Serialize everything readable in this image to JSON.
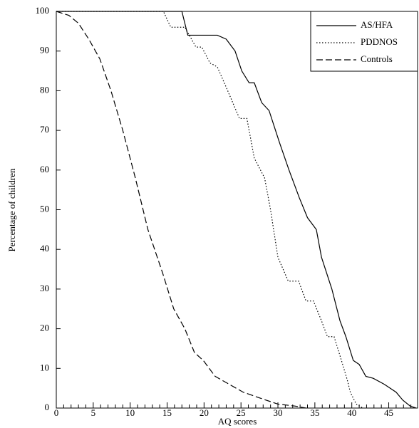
{
  "chart_data": {
    "type": "line",
    "x_label": "AQ scores",
    "y_label": "Percentage of children",
    "xlim": [
      0,
      49
    ],
    "ylim": [
      0,
      100
    ],
    "xticks": [
      0,
      5,
      10,
      15,
      20,
      25,
      30,
      35,
      40,
      45
    ],
    "xminor_ticks": [
      1,
      2,
      3,
      4,
      6,
      7,
      8,
      9,
      11,
      12,
      13,
      14,
      16,
      17,
      18,
      19,
      21,
      22,
      23,
      24,
      26,
      27,
      28,
      29,
      31,
      32,
      33,
      34,
      36,
      37,
      38,
      39,
      41,
      42,
      43,
      44,
      46,
      47,
      48
    ],
    "yticks": [
      0,
      10,
      20,
      30,
      40,
      50,
      60,
      70,
      80,
      90,
      100
    ],
    "legend": "top-right",
    "series": [
      {
        "name": "AS/HFA",
        "color": "#000000",
        "dash": "solid",
        "x": [
          0,
          17.0,
          17.8,
          21.8,
          23,
          24.2,
          25.1,
          26.1,
          26.8,
          27.8,
          28.8,
          30.2,
          31.5,
          32.9,
          34,
          35.2,
          35.9,
          37.3,
          38.4,
          39.2,
          40.2,
          41,
          41.9,
          42.9,
          44.4,
          46,
          46.9,
          47.9,
          48.7
        ],
        "values": [
          100,
          100,
          94,
          94,
          93,
          90,
          85,
          82,
          82,
          77,
          75,
          67,
          60,
          53,
          48,
          45,
          38,
          30,
          22,
          18,
          12,
          11,
          8,
          7.5,
          6,
          4,
          2,
          0.5,
          0
        ]
      },
      {
        "name": "PDDNOS",
        "color": "#000000",
        "dash": "dotted",
        "x": [
          0,
          14.5,
          15.5,
          17.4,
          18.9,
          19.7,
          20.8,
          21.8,
          23.2,
          24.8,
          25.8,
          26.8,
          28.2,
          29,
          30,
          31.4,
          32.8,
          33.8,
          34.8,
          35.9,
          36.7,
          37.6,
          38.6,
          39.4,
          39.8,
          40.6,
          41.5
        ],
        "values": [
          100,
          100,
          96,
          96,
          91,
          91,
          87,
          86,
          80,
          73,
          73,
          63,
          58,
          50,
          38,
          32,
          32,
          27,
          27,
          22,
          18,
          18,
          12,
          7,
          4,
          1,
          0
        ]
      },
      {
        "name": "Controls",
        "color": "#000000",
        "dash": "dashed",
        "x": [
          0,
          1.7,
          3,
          4.4,
          5.9,
          7.4,
          9,
          10.7,
          12.4,
          14.4,
          15.9,
          17.4,
          18.7,
          19.9,
          21.5,
          23.4,
          25.3,
          27.6,
          30,
          32.3,
          33.8
        ],
        "values": [
          100,
          99,
          97,
          93,
          88,
          80,
          70,
          58,
          45,
          34,
          25,
          20,
          14,
          12,
          8,
          6,
          4,
          2.5,
          1,
          0.5,
          0
        ]
      }
    ]
  }
}
